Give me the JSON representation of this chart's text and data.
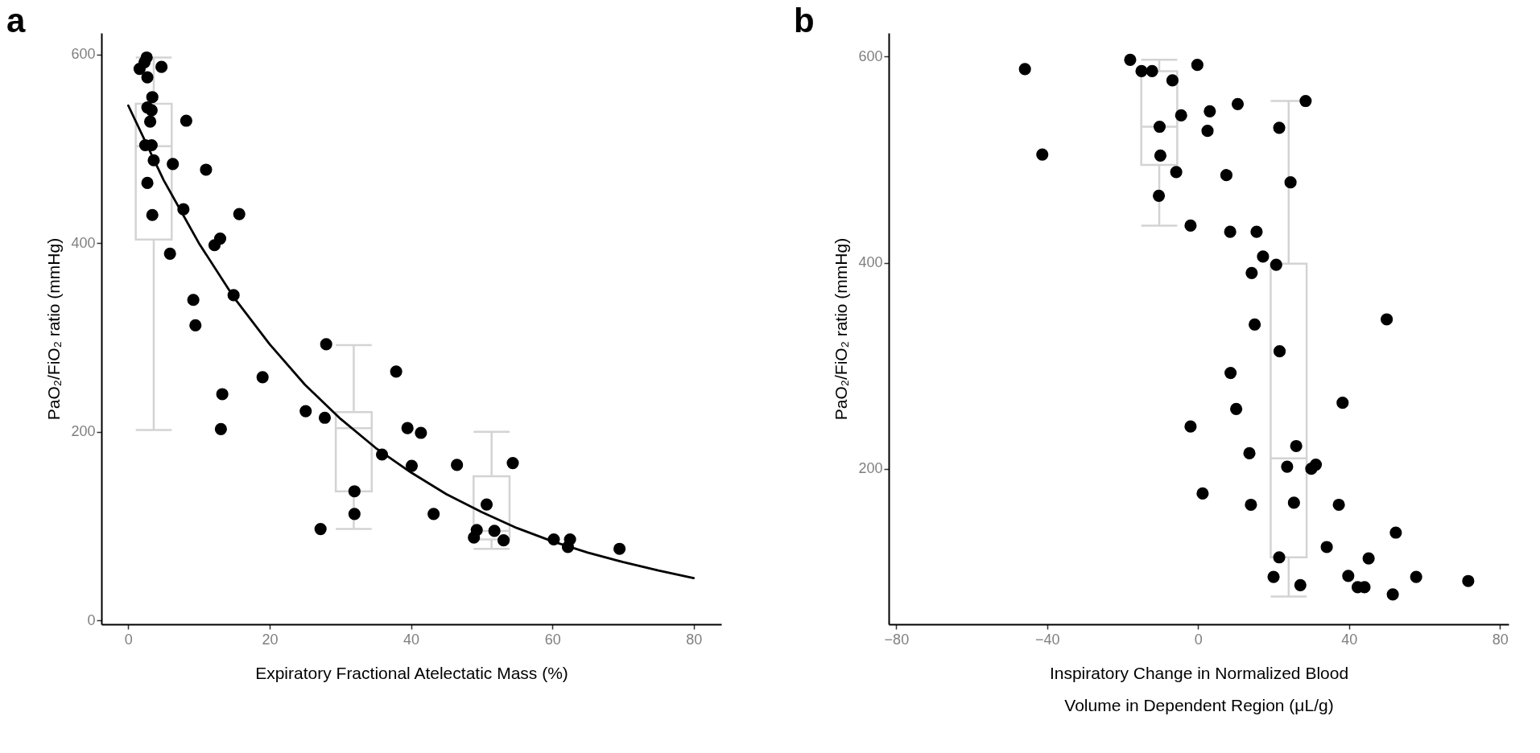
{
  "chart_data": [
    {
      "type": "scatter",
      "title": "a",
      "xlabel": "Expiratory Fractional Atelectatic Mass (%)",
      "ylabel": "PaO₂/FiO₂ ratio (mmHg)",
      "xlim": [
        -3.8,
        83.9
      ],
      "xticks": [
        0,
        20,
        40,
        60,
        80
      ],
      "ylim": [
        -4,
        623
      ],
      "yticks": [
        0,
        200,
        400,
        600
      ],
      "series": [
        {
          "type": "box",
          "color": "#d3d3d3",
          "x": [
            3.6,
            31.9,
            51.4
          ],
          "boxes": [
            {
              "low": 202,
              "q1": 404,
              "median": 503,
              "q3": 548,
              "high": 597
            },
            {
              "low": 97,
              "q1": 137,
              "median": 204,
              "q3": 221,
              "high": 292
            },
            {
              "low": 76,
              "q1": 86,
              "median": 95,
              "q3": 153,
              "high": 200
            }
          ]
        },
        {
          "marker": "circle",
          "color": "#000000",
          "x": [
            2.6,
            2.3,
            1.6,
            4.7,
            2.7,
            3.4,
            2.7,
            3.3,
            3.1,
            8.2,
            2.4,
            3.3,
            3.6,
            6.3,
            11.0,
            2.7,
            7.8,
            3.4,
            15.7,
            13.0,
            12.2,
            5.9,
            14.9,
            9.2,
            9.5,
            28.0,
            19.0,
            13.3,
            13.1,
            25.1,
            27.8,
            32.0,
            32.0,
            27.2,
            37.9,
            39.5,
            41.4,
            35.9,
            40.1,
            46.5,
            54.4,
            43.2,
            50.7,
            49.3,
            48.9,
            51.8,
            53.1,
            60.2,
            62.5,
            62.2,
            69.5
          ],
          "values": [
            597,
            592,
            585,
            587,
            576,
            555,
            544,
            541,
            529,
            530,
            504,
            504,
            488,
            484,
            478,
            464,
            436,
            430,
            431,
            405,
            398,
            389,
            345,
            340,
            313,
            293,
            258,
            240,
            203,
            222,
            215,
            137,
            113,
            97,
            264,
            204,
            199,
            176,
            164,
            165,
            167,
            113,
            123,
            96,
            88,
            95,
            85,
            86,
            86,
            78,
            76
          ]
        },
        {
          "type": "line",
          "color": "#000000",
          "x": [
            0,
            5,
            10,
            15,
            20,
            25,
            30,
            35,
            40,
            45,
            50,
            55,
            60,
            65,
            70,
            75,
            80
          ],
          "values": [
            546,
            467,
            400,
            342,
            293,
            250,
            214,
            183,
            157,
            134,
            115,
            98,
            84,
            72,
            62,
            53,
            45
          ]
        }
      ]
    },
    {
      "type": "scatter",
      "title": "b",
      "xlabel": "Inspiratory Change in Normalized Blood Volume in Dependent Region (μL/g)",
      "ylabel": "PaO₂/FiO₂ ratio (mmHg)",
      "xlim": [
        -82,
        82.3
      ],
      "xticks": [
        -80,
        -40,
        0,
        40,
        80
      ],
      "ylim": [
        49,
        623
      ],
      "yticks": [
        200,
        400,
        600
      ],
      "series": [
        {
          "type": "box",
          "color": "#d3d3d3",
          "x": [
            -10.3,
            24.0
          ],
          "boxes": [
            {
              "low": 436,
              "q1": 495,
              "median": 532,
              "q3": 586,
              "high": 597
            },
            {
              "low": 76,
              "q1": 114,
              "median": 210,
              "q3": 399,
              "high": 557
            }
          ]
        },
        {
          "marker": "circle",
          "color": "#000000",
          "x": [
            -45.9,
            -41.3,
            -18.0,
            -15.0,
            -12.2,
            -6.8,
            -0.2,
            -4.5,
            -10.2,
            -10.0,
            -5.8,
            -10.4,
            -2.0,
            3.1,
            2.5,
            10.5,
            7.5,
            8.5,
            15.5,
            21.5,
            28.5,
            24.5,
            17.2,
            20.7,
            14.2,
            15.0,
            50.0,
            21.6,
            8.6,
            38.3,
            10.1,
            -2.0,
            26.0,
            13.6,
            23.6,
            31.2,
            30.0,
            1.2,
            14.0,
            25.4,
            37.3,
            52.4,
            34.1,
            21.5,
            45.2,
            20.0,
            27.1,
            39.8,
            42.3,
            44.1,
            57.8,
            71.6,
            51.6
          ],
          "values": [
            588,
            505,
            597,
            586,
            586,
            577,
            592,
            543,
            532,
            504,
            488,
            465,
            436,
            547,
            528,
            554,
            485,
            430,
            430,
            531,
            557,
            478,
            406,
            398,
            390,
            340,
            345,
            314,
            293,
            264,
            258,
            241,
            222,
            215,
            202,
            204,
            200,
            176,
            165,
            167,
            165,
            138,
            124,
            114,
            113,
            95,
            87,
            96,
            85,
            85,
            95,
            91,
            78
          ]
        }
      ]
    }
  ]
}
